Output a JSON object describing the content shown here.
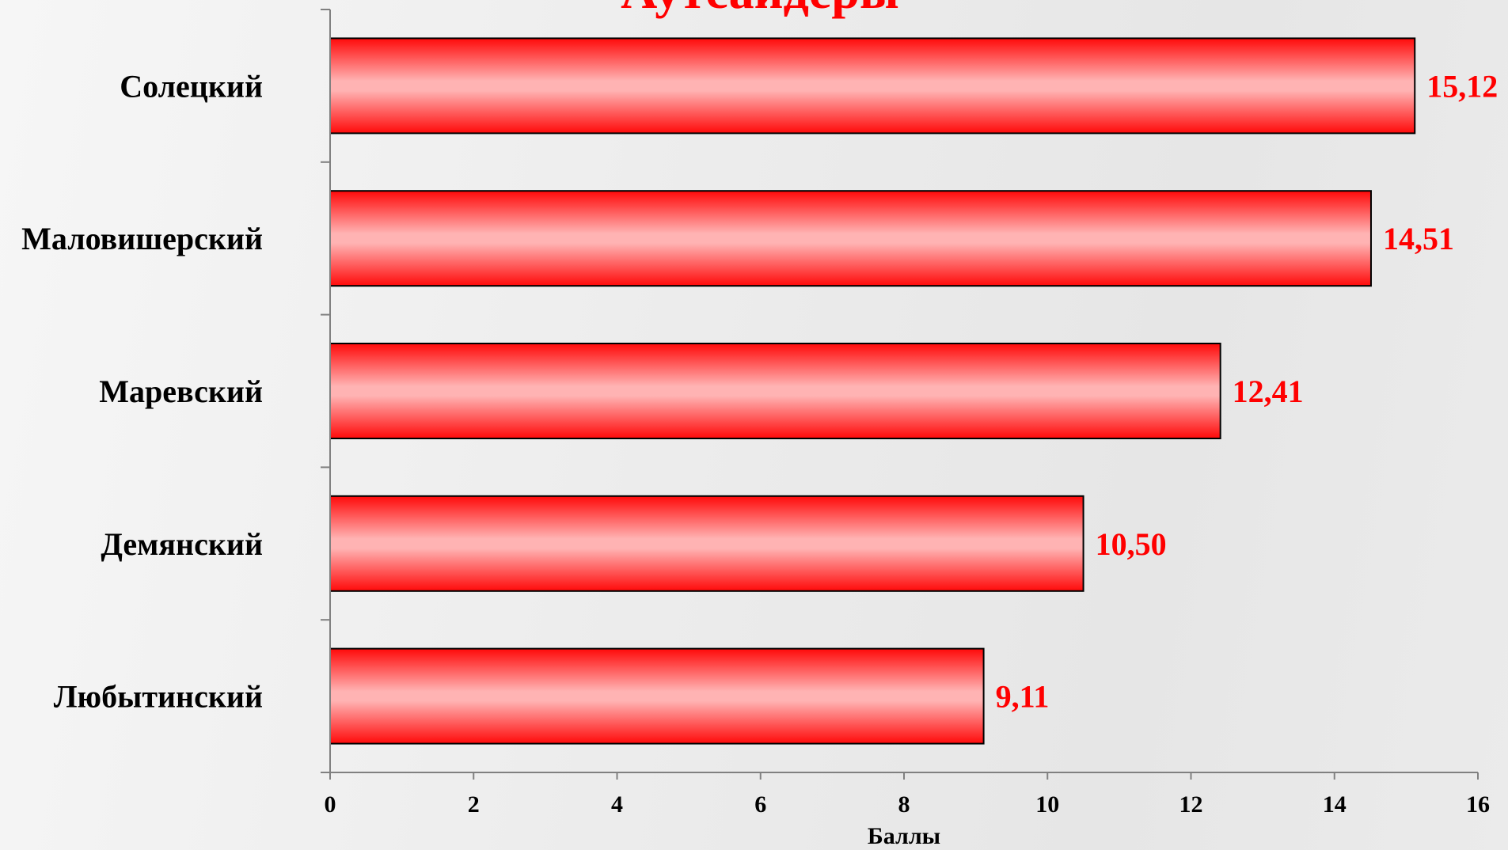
{
  "chart_data": {
    "type": "bar",
    "orientation": "horizontal",
    "title": "Аутсайдеры",
    "categories": [
      "Солецкий",
      "Маловишерский",
      "Маревский",
      "Демянский",
      "Любытинский"
    ],
    "values": [
      15.12,
      14.51,
      12.41,
      10.5,
      9.11
    ],
    "value_labels": [
      "15,12",
      "14,51",
      "12,41",
      "10,50",
      "9,11"
    ],
    "xlabel": "Баллы",
    "xlim": [
      0,
      16
    ],
    "x_ticks": [
      0,
      2,
      4,
      6,
      8,
      10,
      12,
      14,
      16
    ],
    "x_tick_labels": [
      "0",
      "2",
      "4",
      "6",
      "8",
      "10",
      "12",
      "14",
      "16"
    ],
    "grid": false,
    "legend": "none",
    "colors": {
      "bar_edge": "#ff0a0a",
      "bar_center": "#ffb3b3",
      "bar_outline": "#000000",
      "value_label": "#ff0000",
      "title": "#ff0000",
      "axis": "#808080"
    }
  }
}
